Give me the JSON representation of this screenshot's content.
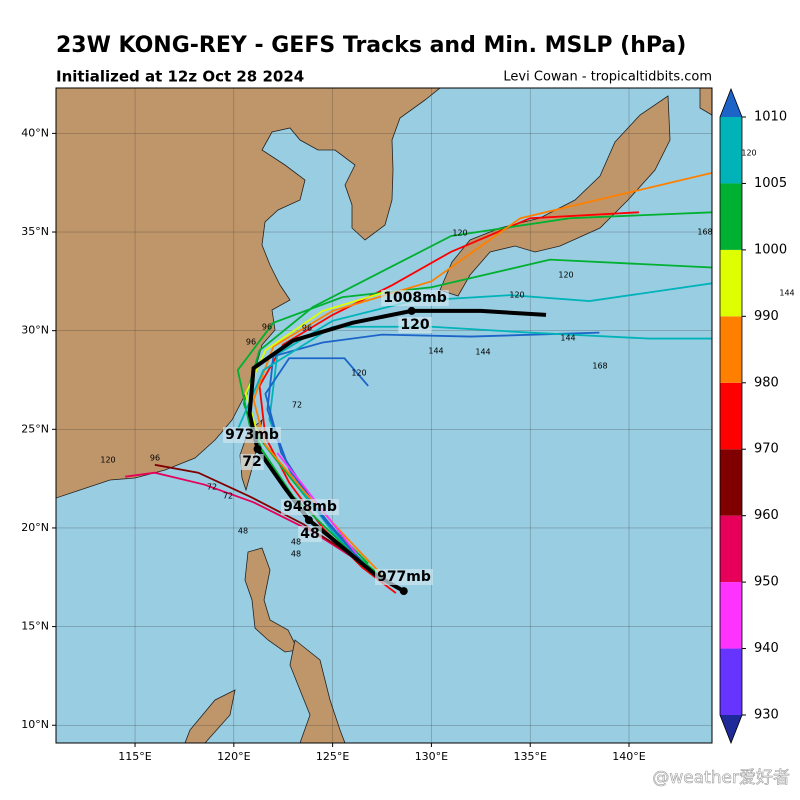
{
  "header": {
    "title": "23W KONG-REY - GEFS Tracks and Min. MSLP (hPa)",
    "subtitle": "Initialized at 12z Oct 28 2024",
    "credit": "Levi Cowan - tropicaltidbits.com"
  },
  "map": {
    "lon_range": [
      111,
      144.2
    ],
    "lat_range": [
      9.1,
      42.3
    ],
    "lon_ticks": [
      {
        "value": 115,
        "label": "115°E"
      },
      {
        "value": 120,
        "label": "120°E"
      },
      {
        "value": 125,
        "label": "125°E"
      },
      {
        "value": 130,
        "label": "130°E"
      },
      {
        "value": 135,
        "label": "135°E"
      },
      {
        "value": 140,
        "label": "140°E"
      }
    ],
    "lat_ticks": [
      {
        "value": 10,
        "label": "10°N"
      },
      {
        "value": 15,
        "label": "15°N"
      },
      {
        "value": 20,
        "label": "20°N"
      },
      {
        "value": 25,
        "label": "25°N"
      },
      {
        "value": 30,
        "label": "30°N"
      },
      {
        "value": 35,
        "label": "35°N"
      },
      {
        "value": 40,
        "label": "40°N"
      }
    ],
    "mean_track": [
      [
        128.6,
        16.8
      ],
      [
        127.2,
        17.6
      ],
      [
        126,
        18.6
      ],
      [
        124.8,
        19.6
      ],
      [
        123.8,
        20.4
      ],
      [
        122.6,
        22
      ],
      [
        121.2,
        24
      ],
      [
        120.8,
        25.8
      ],
      [
        121,
        28.1
      ],
      [
        123,
        29.5
      ],
      [
        126,
        30.4
      ],
      [
        129,
        31
      ],
      [
        132.5,
        31
      ],
      [
        135.8,
        30.8
      ]
    ],
    "members": [
      {
        "color": "#ff0000",
        "points": [
          [
            128.2,
            16.7
          ],
          [
            126.5,
            18
          ],
          [
            124.5,
            20
          ],
          [
            122.8,
            22.3
          ],
          [
            121.6,
            24.6
          ],
          [
            121.3,
            27.2
          ],
          [
            122.5,
            29.3
          ],
          [
            125,
            30.8
          ],
          [
            128,
            32.3
          ],
          [
            131,
            34
          ],
          [
            135,
            35.7
          ],
          [
            140.5,
            36
          ]
        ]
      },
      {
        "color": "#00b030",
        "points": [
          [
            127.5,
            17.5
          ],
          [
            125.5,
            19.2
          ],
          [
            123,
            21.6
          ],
          [
            121.4,
            24
          ],
          [
            120.5,
            26.3
          ],
          [
            121.3,
            29
          ],
          [
            124,
            31.2
          ],
          [
            127.5,
            33
          ],
          [
            131,
            34.8
          ],
          [
            137,
            35.7
          ],
          [
            144.2,
            36
          ]
        ]
      },
      {
        "color": "#00b030",
        "points": [
          [
            126.8,
            18.2
          ],
          [
            124.5,
            20.5
          ],
          [
            122.5,
            23
          ],
          [
            120.8,
            25.2
          ],
          [
            120.2,
            28
          ],
          [
            122,
            30.4
          ],
          [
            125.5,
            31.7
          ],
          [
            130,
            32.2
          ],
          [
            136,
            33.6
          ],
          [
            144.2,
            33.2
          ]
        ]
      },
      {
        "color": "#00b3b8",
        "points": [
          [
            127,
            17.8
          ],
          [
            125,
            19.8
          ],
          [
            123,
            22.5
          ],
          [
            121.8,
            25.5
          ],
          [
            122.2,
            28.8
          ],
          [
            125,
            30.5
          ],
          [
            129,
            31.5
          ],
          [
            134,
            31.8
          ],
          [
            138,
            31.5
          ],
          [
            144.2,
            32.4
          ]
        ]
      },
      {
        "color": "#1c64c8",
        "points": [
          [
            126.4,
            18.4
          ],
          [
            124.6,
            20.4
          ],
          [
            122.8,
            23
          ],
          [
            121.7,
            26
          ],
          [
            122,
            28.7
          ],
          [
            124.5,
            29.4
          ],
          [
            127.5,
            29.8
          ],
          [
            132,
            29.7
          ],
          [
            138.5,
            29.9
          ]
        ]
      },
      {
        "color": "#1c64c8",
        "points": [
          [
            126,
            18.8
          ],
          [
            124.2,
            21
          ],
          [
            122.4,
            23.8
          ],
          [
            121.6,
            26.8
          ],
          [
            122.8,
            28.6
          ],
          [
            125.6,
            28.6
          ],
          [
            126.8,
            27.2
          ]
        ]
      },
      {
        "color": "#ff8000",
        "points": [
          [
            127.8,
            17.3
          ],
          [
            125.8,
            19.4
          ],
          [
            123.6,
            21.8
          ],
          [
            121.6,
            24.2
          ],
          [
            121,
            26.5
          ],
          [
            122,
            29.2
          ],
          [
            125,
            31
          ],
          [
            130,
            32.5
          ],
          [
            134.5,
            35.7
          ],
          [
            144.2,
            38
          ]
        ]
      },
      {
        "color": "#e6005a",
        "points": [
          [
            126.5,
            18.2
          ],
          [
            124,
            19.8
          ],
          [
            121,
            21.3
          ],
          [
            118.5,
            22.2
          ],
          [
            116,
            22.8
          ],
          [
            114.5,
            22.6
          ]
        ]
      },
      {
        "color": "#800000",
        "points": [
          [
            126,
            18.6
          ],
          [
            123.5,
            20.2
          ],
          [
            120.8,
            21.6
          ],
          [
            118.2,
            22.8
          ],
          [
            116,
            23.2
          ]
        ]
      },
      {
        "color": "#ff33ff",
        "points": [
          [
            126.2,
            18.7
          ],
          [
            124.8,
            20.5
          ],
          [
            123.4,
            22.3
          ],
          [
            122.2,
            23.8
          ]
        ]
      },
      {
        "color": "#ddff00",
        "points": [
          [
            121.2,
            24.8
          ],
          [
            120.6,
            26.8
          ],
          [
            121.6,
            29
          ],
          [
            124.5,
            31
          ],
          [
            127.8,
            32
          ]
        ]
      },
      {
        "color": "#00b3b8",
        "points": [
          [
            120.2,
            25
          ],
          [
            121.5,
            28
          ],
          [
            125,
            30.2
          ],
          [
            130,
            30.2
          ],
          [
            135,
            29.9
          ],
          [
            141,
            29.6
          ],
          [
            144.2,
            29.6
          ]
        ]
      }
    ],
    "annotations": [
      "1008mb",
      "120",
      "973mb",
      "72",
      "948mb",
      "48",
      "977mb"
    ],
    "track_labels": [
      "120",
      "120",
      "120",
      "120",
      "144",
      "144",
      "144",
      "168",
      "168",
      "96",
      "96",
      "96",
      "72",
      "72",
      "72",
      "48",
      "48",
      "48",
      "120",
      "96"
    ],
    "edge_labels": [
      "120",
      "144"
    ]
  },
  "colorbar": {
    "levels": [
      930,
      940,
      950,
      960,
      970,
      980,
      990,
      1000,
      1005,
      1010
    ],
    "colors": [
      "#6633ff",
      "#ff33ff",
      "#e6005a",
      "#800000",
      "#ff0000",
      "#ff8000",
      "#ddff00",
      "#00b030",
      "#00b3b8"
    ],
    "under_color": "#1e2a9a",
    "over_color": "#1c64c8"
  },
  "watermark": "@weather爱好者"
}
